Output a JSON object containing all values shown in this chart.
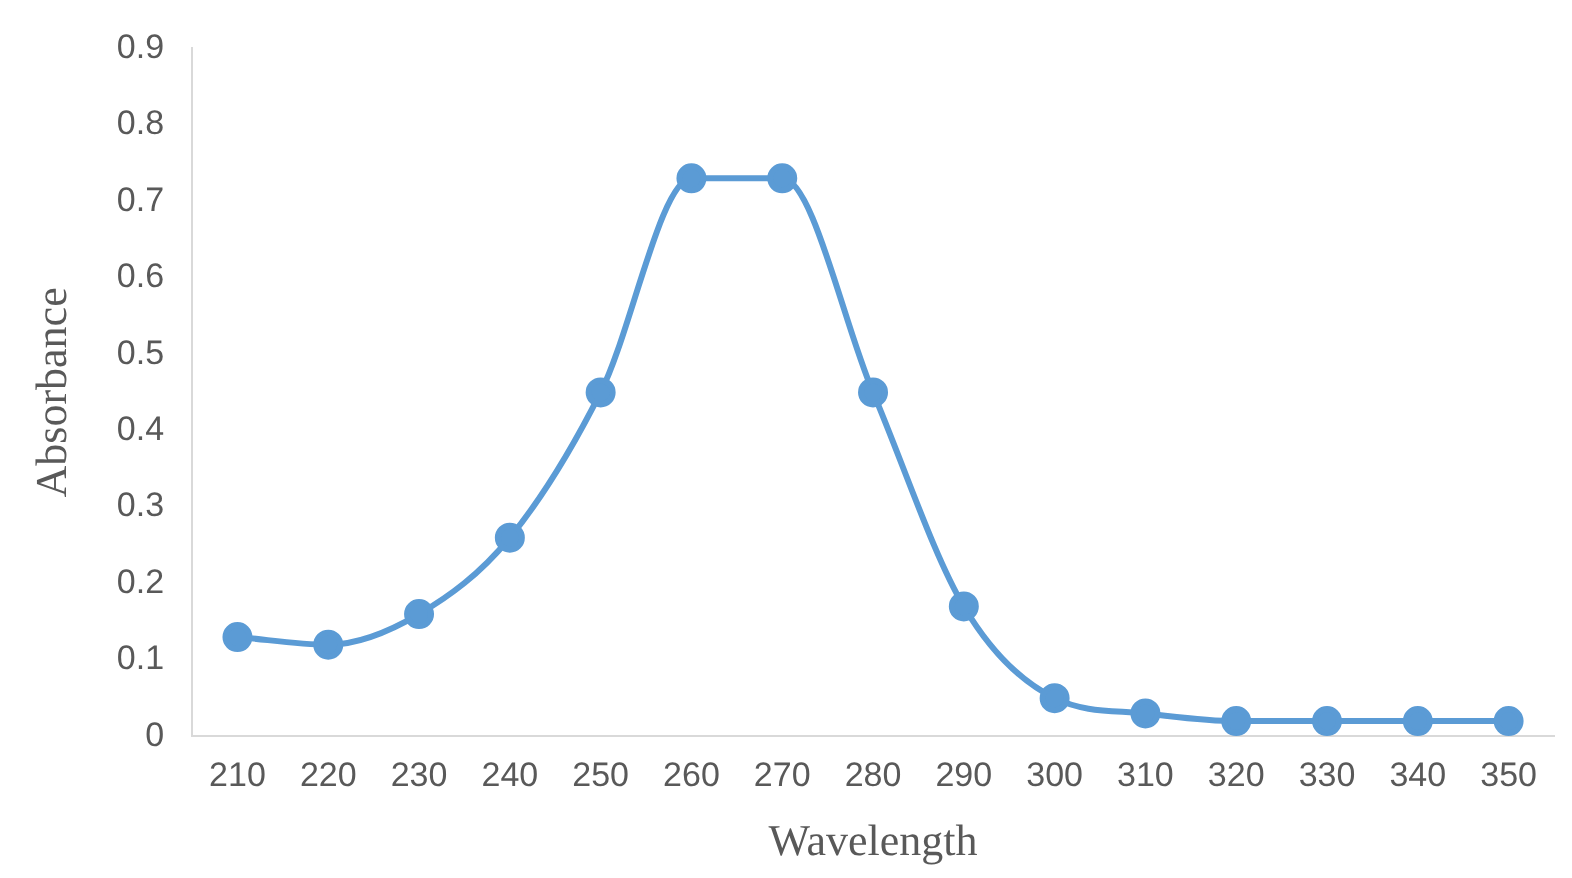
{
  "chart_data": {
    "type": "line",
    "xlabel": "Wavelength",
    "ylabel": "Absorbance",
    "categories": [
      "210",
      "220",
      "230",
      "240",
      "250",
      "260",
      "270",
      "280",
      "290",
      "300",
      "310",
      "320",
      "330",
      "340",
      "350"
    ],
    "series": [
      {
        "color": "#5b9bd5",
        "values": [
          0.13,
          0.12,
          0.16,
          0.26,
          0.45,
          0.73,
          0.73,
          0.45,
          0.17,
          0.05,
          0.03,
          0.02,
          0.02,
          0.02,
          0.02
        ]
      }
    ],
    "ylim": [
      0,
      0.9
    ],
    "yticks": [
      0,
      0.1,
      0.2,
      0.3,
      0.4,
      0.5,
      0.6,
      0.7,
      0.8,
      0.9
    ],
    "grid": false,
    "legend": false,
    "marker": "circle",
    "line_style": "solid"
  }
}
